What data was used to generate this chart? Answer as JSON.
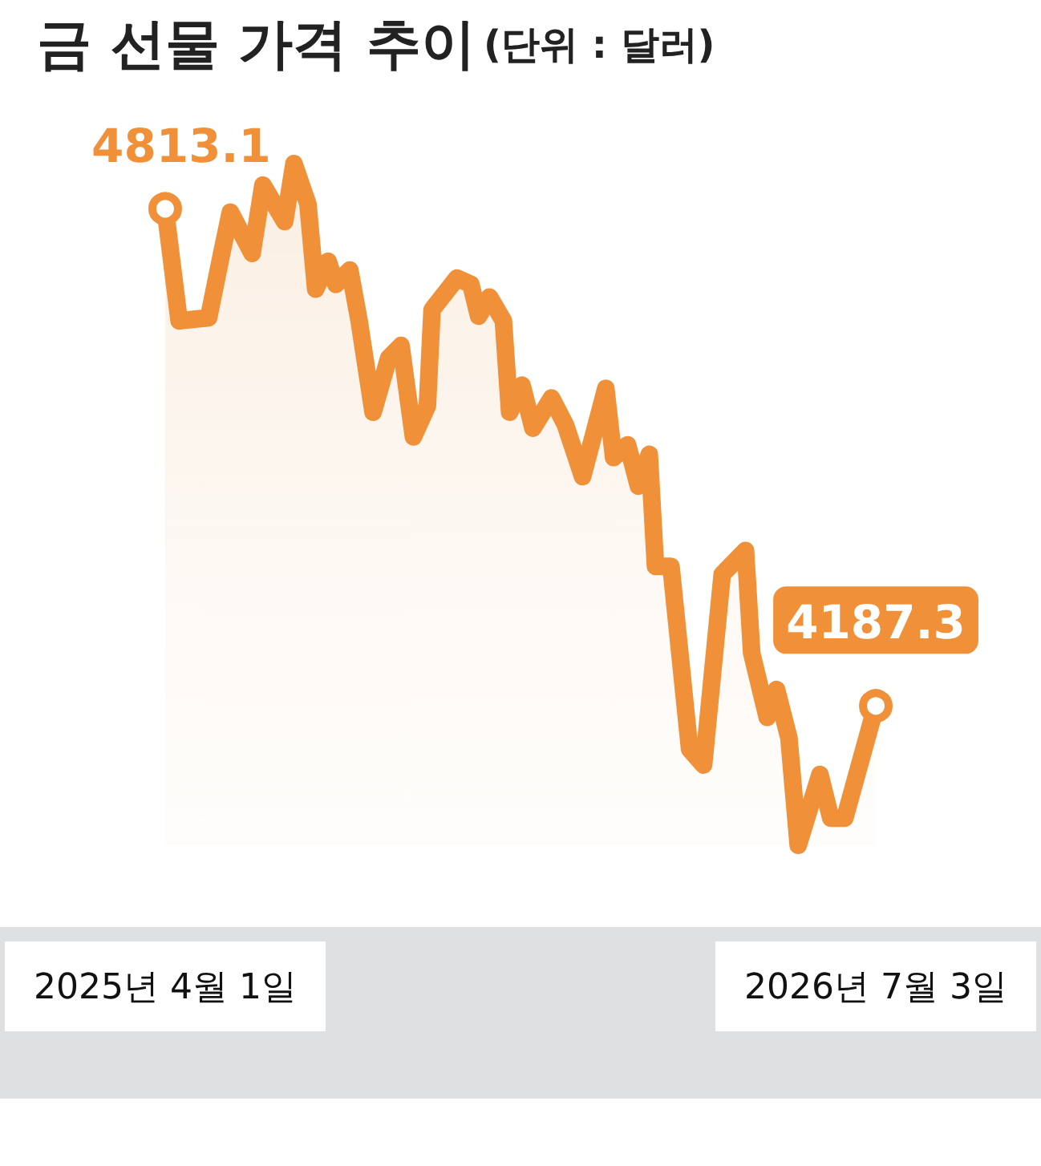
{
  "chart_data": {
    "type": "area",
    "title": "금 선물 가격 추이",
    "subtitle": "(단위 : 달러)",
    "x": [
      "2025-04-01",
      "2025-04-10",
      "2025-04-29",
      "2025-05-07",
      "2025-05-13",
      "2025-05-27",
      "2025-06-03",
      "2025-06-17",
      "2025-06-23",
      "2025-07-02",
      "2025-07-07",
      "2025-07-15",
      "2025-07-20",
      "2025-07-29",
      "2025-08-04",
      "2025-08-13",
      "2025-08-23",
      "2025-08-31",
      "2025-09-08",
      "2025-09-17",
      "2025-09-20",
      "2025-10-06",
      "2025-10-15",
      "2025-10-20",
      "2025-10-27",
      "2025-11-05",
      "2025-11-09",
      "2025-11-17",
      "2025-11-24",
      "2025-12-06",
      "2025-12-15",
      "2025-12-26",
      "2026-01-10",
      "2026-01-15",
      "2026-01-24",
      "2026-01-31",
      "2026-02-07",
      "2026-02-11",
      "2026-02-21",
      "2026-03-05",
      "2026-03-14",
      "2026-03-26",
      "2026-04-10",
      "2026-04-14",
      "2026-04-24",
      "2026-04-30",
      "2026-05-08",
      "2026-05-14",
      "2026-05-28",
      "2026-06-04",
      "2026-06-13",
      "2026-07-03"
    ],
    "series": [
      {
        "color": "#f0913a",
        "values": [
          4813.1,
          4672,
          4676,
          4753,
          4809,
          4757,
          4843,
          4797,
          4870,
          4819,
          4712,
          4747,
          4718,
          4736,
          4672,
          4557,
          4625,
          4641,
          4526,
          4565,
          4686,
          4726,
          4718,
          4678,
          4702,
          4672,
          4557,
          4591,
          4537,
          4575,
          4541,
          4476,
          4587,
          4500,
          4516,
          4464,
          4504,
          4363,
          4363,
          4133,
          4113,
          4353,
          4383,
          4254,
          4173,
          4208,
          4147,
          4012,
          4101,
          4046,
          4046,
          4187.3
        ],
        "value_labels": [
          "4813.1",
          null,
          null,
          null,
          null,
          null,
          null,
          null,
          null,
          null,
          null,
          null,
          null,
          null,
          null,
          null,
          null,
          null,
          null,
          null,
          null,
          null,
          null,
          null,
          null,
          null,
          null,
          null,
          null,
          null,
          null,
          null,
          null,
          null,
          null,
          null,
          null,
          null,
          null,
          null,
          null,
          null,
          null,
          null,
          null,
          null,
          null,
          null,
          null,
          null,
          null,
          "4187.3"
        ]
      }
    ],
    "xlim": [
      "2025-04-01",
      "2026-07-03"
    ],
    "xticks": [
      {
        "value": "2025-04-01",
        "label": "2025년 4월 1일"
      },
      {
        "value": "2026-07-03",
        "label": "2026년 7월 3일"
      }
    ],
    "grid": false
  }
}
